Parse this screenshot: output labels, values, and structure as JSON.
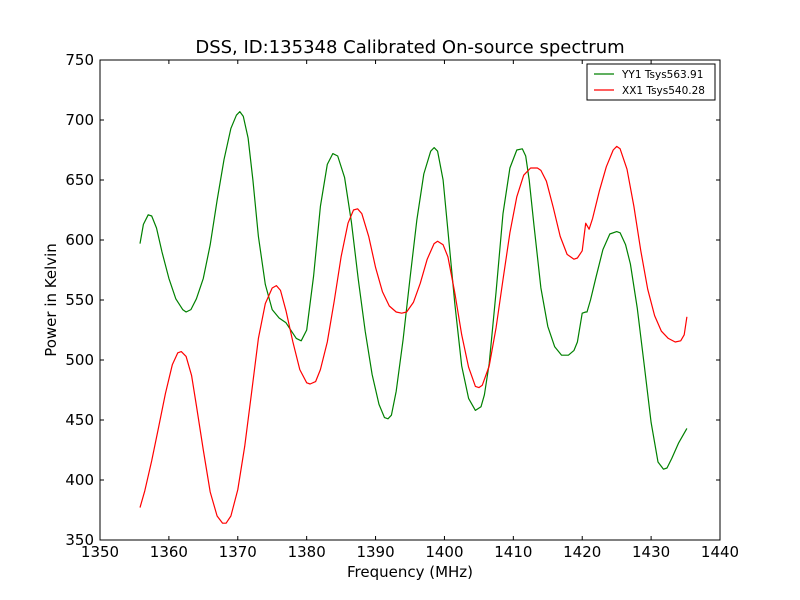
{
  "chart_data": {
    "type": "line",
    "title": "DSS, ID:135348 Calibrated On-source spectrum",
    "xlabel": "Frequency (MHz)",
    "ylabel": "Power in Kelvin",
    "xlim": [
      1350,
      1440
    ],
    "ylim": [
      350,
      750
    ],
    "xticks": [
      "1350",
      "1360",
      "1370",
      "1380",
      "1390",
      "1400",
      "1410",
      "1420",
      "1430",
      "1440"
    ],
    "yticks": [
      "350",
      "400",
      "450",
      "500",
      "550",
      "600",
      "650",
      "700",
      "750"
    ],
    "legend_position": "top-right",
    "grid": false,
    "series": [
      {
        "name": "YY1 Tsys563.91",
        "color": "#008000",
        "x": [
          1355.8,
          1356.3,
          1357.0,
          1357.5,
          1358.2,
          1359.0,
          1360.0,
          1361.0,
          1362.0,
          1362.5,
          1363.2,
          1364.0,
          1365.0,
          1366.0,
          1367.0,
          1368.0,
          1369.0,
          1369.8,
          1370.3,
          1370.8,
          1371.5,
          1372.2,
          1373.0,
          1374.0,
          1375.0,
          1376.0,
          1377.0,
          1377.8,
          1378.5,
          1379.2,
          1380.0,
          1381.0,
          1382.0,
          1383.0,
          1383.8,
          1384.5,
          1385.5,
          1386.5,
          1387.5,
          1388.5,
          1389.5,
          1390.5,
          1391.3,
          1391.8,
          1392.3,
          1393.0,
          1394.0,
          1395.0,
          1396.0,
          1397.0,
          1398.0,
          1398.5,
          1399.0,
          1399.8,
          1400.5,
          1401.5,
          1402.5,
          1403.5,
          1404.5,
          1405.3,
          1405.8,
          1406.5,
          1407.5,
          1408.5,
          1409.5,
          1410.5,
          1411.3,
          1411.8,
          1412.3,
          1413.0,
          1414.0,
          1415.0,
          1416.0,
          1417.0,
          1418.0,
          1418.8,
          1419.3,
          1420.0,
          1420.5,
          1420.7,
          1421.2,
          1422.0,
          1423.0,
          1424.0,
          1425.0,
          1425.5,
          1426.3,
          1427.0,
          1428.0,
          1429.0,
          1430.0,
          1431.0,
          1431.8,
          1432.3,
          1433.0,
          1434.0,
          1435.2
        ],
        "y": [
          597,
          613,
          621,
          620,
          610,
          590,
          568,
          551,
          542,
          540,
          542,
          551,
          568,
          596,
          633,
          667,
          693,
          704,
          707,
          703,
          685,
          650,
          603,
          563,
          542,
          535,
          531,
          524,
          518,
          516,
          525,
          570,
          628,
          663,
          672,
          670,
          652,
          615,
          567,
          524,
          488,
          463,
          452,
          451,
          454,
          474,
          517,
          568,
          617,
          655,
          674,
          677,
          674,
          650,
          608,
          547,
          495,
          468,
          458,
          461,
          471,
          497,
          557,
          622,
          660,
          675,
          676,
          670,
          650,
          612,
          560,
          528,
          511,
          504,
          504,
          508,
          515,
          539,
          540,
          540,
          550,
          569,
          592,
          605,
          607,
          606,
          596,
          580,
          543,
          496,
          448,
          415,
          409,
          410,
          418,
          431,
          443
        ]
      },
      {
        "name": "XX1 Tsys540.28",
        "color": "#ff0000",
        "x": [
          1355.8,
          1356.5,
          1357.5,
          1358.5,
          1359.5,
          1360.5,
          1361.3,
          1361.8,
          1362.5,
          1363.3,
          1364.0,
          1365.0,
          1366.0,
          1367.0,
          1367.8,
          1368.3,
          1369.0,
          1370.0,
          1371.0,
          1372.0,
          1373.0,
          1374.0,
          1375.0,
          1375.6,
          1376.2,
          1377.0,
          1378.0,
          1379.0,
          1380.0,
          1380.5,
          1381.3,
          1382.0,
          1383.0,
          1384.0,
          1385.0,
          1386.0,
          1386.8,
          1387.4,
          1388.0,
          1389.0,
          1390.0,
          1391.0,
          1392.0,
          1393.0,
          1393.8,
          1394.5,
          1395.5,
          1396.5,
          1397.5,
          1398.5,
          1399.0,
          1399.8,
          1400.5,
          1401.5,
          1402.5,
          1403.5,
          1404.5,
          1405.0,
          1405.5,
          1406.5,
          1407.5,
          1408.5,
          1409.5,
          1410.5,
          1411.5,
          1412.5,
          1413.5,
          1414.0,
          1414.8,
          1415.8,
          1416.8,
          1417.8,
          1418.8,
          1419.3,
          1420.0,
          1420.5,
          1421.0,
          1421.5,
          1422.5,
          1423.5,
          1424.5,
          1425.0,
          1425.5,
          1426.5,
          1427.5,
          1428.5,
          1429.5,
          1430.5,
          1431.5,
          1432.5,
          1433.5,
          1434.3,
          1434.8,
          1435.2
        ],
        "y": [
          377,
          391,
          416,
          444,
          472,
          496,
          506,
          507,
          503,
          487,
          462,
          425,
          390,
          370,
          364,
          364,
          370,
          392,
          428,
          473,
          518,
          547,
          560,
          562,
          558,
          541,
          515,
          492,
          481,
          480,
          482,
          492,
          515,
          549,
          586,
          614,
          625,
          626,
          622,
          603,
          577,
          557,
          545,
          540,
          539,
          540,
          548,
          564,
          584,
          597,
          599,
          596,
          586,
          556,
          521,
          494,
          478,
          477,
          479,
          495,
          527,
          567,
          606,
          636,
          654,
          660,
          660,
          658,
          649,
          627,
          603,
          588,
          584,
          585,
          591,
          614,
          609,
          618,
          641,
          661,
          675,
          678,
          676,
          659,
          628,
          591,
          559,
          537,
          524,
          518,
          515,
          516,
          521,
          536
        ]
      }
    ]
  }
}
